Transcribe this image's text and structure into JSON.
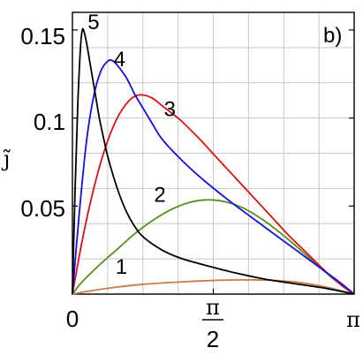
{
  "chart_data": {
    "type": "line",
    "panel_label": "b)",
    "ylabel": "j̃",
    "xlabel": "",
    "xlim": [
      0,
      3.14159
    ],
    "ylim": [
      0,
      0.16
    ],
    "x_ticks": [
      {
        "value": 0,
        "label": "0"
      },
      {
        "value": 1.5708,
        "label_num": "π",
        "label_den": "2"
      },
      {
        "value": 3.14159,
        "label": "π"
      }
    ],
    "y_ticks": [
      {
        "value": 0.05,
        "label": "0.05"
      },
      {
        "value": 0.1,
        "label": "0.1"
      },
      {
        "value": 0.15,
        "label": "0.15"
      }
    ],
    "grid": true,
    "series": [
      {
        "name": "1",
        "color": "#c87c4a",
        "points": [
          [
            0,
            0
          ],
          [
            0.2,
            0.0018
          ],
          [
            0.5,
            0.004
          ],
          [
            0.8,
            0.0056
          ],
          [
            1.2,
            0.0069
          ],
          [
            1.6,
            0.0078
          ],
          [
            1.9,
            0.0081
          ],
          [
            2.2,
            0.0079
          ],
          [
            2.5,
            0.0068
          ],
          [
            2.8,
            0.0043
          ],
          [
            3.14159,
            0
          ]
        ],
        "label_at": [
          0.48,
          0.0115
        ]
      },
      {
        "name": "2",
        "color": "#5a8e1a",
        "points": [
          [
            0,
            0
          ],
          [
            0.1,
            0.0065
          ],
          [
            0.3,
            0.0165
          ],
          [
            0.5,
            0.0255
          ],
          [
            0.7,
            0.0345
          ],
          [
            0.9,
            0.042
          ],
          [
            1.1,
            0.048
          ],
          [
            1.3,
            0.052
          ],
          [
            1.5,
            0.0535
          ],
          [
            1.7,
            0.0525
          ],
          [
            1.9,
            0.049
          ],
          [
            2.1,
            0.043
          ],
          [
            2.3,
            0.0355
          ],
          [
            2.5,
            0.027
          ],
          [
            2.7,
            0.018
          ],
          [
            2.9,
            0.009
          ],
          [
            3.14159,
            0
          ]
        ],
        "label_at": [
          0.91,
          0.0525
        ]
      },
      {
        "name": "3",
        "color": "#e01010",
        "points": [
          [
            0,
            0
          ],
          [
            0.1,
            0.028
          ],
          [
            0.2,
            0.052
          ],
          [
            0.3,
            0.072
          ],
          [
            0.4,
            0.088
          ],
          [
            0.5,
            0.1
          ],
          [
            0.6,
            0.108
          ],
          [
            0.7,
            0.1125
          ],
          [
            0.8,
            0.113
          ],
          [
            0.9,
            0.111
          ],
          [
            1.0,
            0.107
          ],
          [
            1.2,
            0.099
          ],
          [
            1.4,
            0.089
          ],
          [
            1.6,
            0.078
          ],
          [
            1.8,
            0.067
          ],
          [
            2.0,
            0.056
          ],
          [
            2.2,
            0.045
          ],
          [
            2.4,
            0.034
          ],
          [
            2.6,
            0.024
          ],
          [
            2.8,
            0.014
          ],
          [
            3.0,
            0.005
          ],
          [
            3.14159,
            0
          ]
        ],
        "label_at": [
          1.02,
          0.101
        ]
      },
      {
        "name": "4",
        "color": "#1010e6",
        "points": [
          [
            0,
            0
          ],
          [
            0.08,
            0.048
          ],
          [
            0.16,
            0.088
          ],
          [
            0.24,
            0.113
          ],
          [
            0.32,
            0.127
          ],
          [
            0.4,
            0.1325
          ],
          [
            0.45,
            0.1325
          ],
          [
            0.5,
            0.13
          ],
          [
            0.6,
            0.123
          ],
          [
            0.7,
            0.113
          ],
          [
            0.8,
            0.1045
          ],
          [
            0.9,
            0.096
          ],
          [
            1.0,
            0.088
          ],
          [
            1.2,
            0.077
          ],
          [
            1.4,
            0.0675
          ],
          [
            1.6,
            0.059
          ],
          [
            1.8,
            0.051
          ],
          [
            2.0,
            0.0435
          ],
          [
            2.2,
            0.036
          ],
          [
            2.4,
            0.0285
          ],
          [
            2.6,
            0.021
          ],
          [
            2.8,
            0.0135
          ],
          [
            3.0,
            0.006
          ],
          [
            3.14159,
            0
          ]
        ],
        "label_at": [
          0.46,
          0.1295
        ]
      },
      {
        "name": "5",
        "color": "#000000",
        "points": [
          [
            0,
            0
          ],
          [
            0.03,
            0.06
          ],
          [
            0.06,
            0.108
          ],
          [
            0.09,
            0.14
          ],
          [
            0.11,
            0.15
          ],
          [
            0.13,
            0.149
          ],
          [
            0.16,
            0.142
          ],
          [
            0.2,
            0.13
          ],
          [
            0.25,
            0.115
          ],
          [
            0.3,
            0.1
          ],
          [
            0.35,
            0.088
          ],
          [
            0.4,
            0.077
          ],
          [
            0.5,
            0.06
          ],
          [
            0.6,
            0.047
          ],
          [
            0.7,
            0.038
          ],
          [
            0.8,
            0.032
          ],
          [
            1.0,
            0.025
          ],
          [
            1.2,
            0.0205
          ],
          [
            1.4,
            0.0175
          ],
          [
            1.6,
            0.0148
          ],
          [
            1.8,
            0.0122
          ],
          [
            2.0,
            0.01
          ],
          [
            2.2,
            0.008
          ],
          [
            2.4,
            0.0065
          ],
          [
            2.6,
            0.005
          ],
          [
            2.8,
            0.0035
          ],
          [
            3.0,
            0.0015
          ],
          [
            3.14159,
            0
          ]
        ],
        "label_at": [
          0.17,
          0.1505
        ]
      }
    ]
  }
}
